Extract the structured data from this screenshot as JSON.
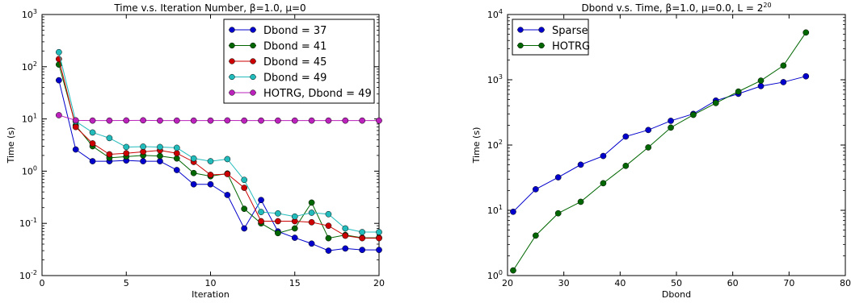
{
  "chart_data": [
    {
      "type": "line",
      "title": "Time v.s. Iteration Number, β=1.0, μ=0",
      "xlabel": "Iteration",
      "ylabel": "Time (s)",
      "xlim": [
        0,
        20
      ],
      "ylim": [
        0.01,
        1000
      ],
      "yscale": "log",
      "xticks": [
        "0",
        "5",
        "10",
        "15",
        "20"
      ],
      "yticks": [
        "10",
        "10",
        "10",
        "10",
        "10",
        "10"
      ],
      "ytick_exponents": [
        "-2",
        "-1",
        "0",
        "1",
        "2",
        "3"
      ],
      "legend_position": "top-right",
      "x": [
        1,
        2,
        3,
        4,
        5,
        6,
        7,
        8,
        9,
        10,
        11,
        12,
        13,
        14,
        15,
        16,
        17,
        18,
        19,
        20
      ],
      "series": [
        {
          "name": "Dbond = 37",
          "color": "#0000cc",
          "values": [
            55,
            2.6,
            1.55,
            1.55,
            1.6,
            1.55,
            1.55,
            1.05,
            0.56,
            0.56,
            0.35,
            0.08,
            0.28,
            0.07,
            0.053,
            0.041,
            0.03,
            0.033,
            0.031,
            0.031
          ]
        },
        {
          "name": "Dbond = 41",
          "color": "#006600",
          "values": [
            110,
            7.5,
            3.0,
            1.8,
            1.9,
            2.0,
            1.95,
            1.75,
            0.92,
            0.8,
            0.9,
            0.19,
            0.1,
            0.065,
            0.08,
            0.25,
            0.052,
            0.06,
            0.053,
            0.053
          ]
        },
        {
          "name": "Dbond = 45",
          "color": "#cc0000",
          "values": [
            140,
            7.0,
            3.4,
            2.1,
            2.2,
            2.35,
            2.5,
            2.2,
            1.5,
            0.85,
            0.88,
            0.48,
            0.11,
            0.11,
            0.11,
            0.105,
            0.09,
            0.058,
            0.052,
            0.052
          ]
        },
        {
          "name": "Dbond = 49",
          "color": "#22bbbb",
          "values": [
            190,
            9.0,
            5.5,
            4.3,
            2.9,
            2.95,
            2.9,
            2.8,
            1.75,
            1.55,
            1.7,
            0.68,
            0.165,
            0.155,
            0.135,
            0.16,
            0.15,
            0.08,
            0.068,
            0.068
          ]
        },
        {
          "name": "HOTRG, Dbond = 49",
          "color": "#bb22bb",
          "values": [
            11.8,
            9.4,
            9.3,
            9.3,
            9.35,
            9.4,
            9.3,
            9.3,
            9.3,
            9.3,
            9.35,
            9.3,
            9.3,
            9.3,
            9.3,
            9.3,
            9.3,
            9.3,
            9.3,
            9.3
          ]
        }
      ]
    },
    {
      "type": "line",
      "title": "Dbond v.s. Time, β=1.0, μ=0.0, L = 2",
      "title_exponent": "20",
      "xlabel": "Dbond",
      "ylabel": "Time (s)",
      "xlim": [
        20,
        80
      ],
      "ylim": [
        1,
        10000
      ],
      "yscale": "log",
      "xticks": [
        "20",
        "30",
        "40",
        "50",
        "60",
        "70",
        "80"
      ],
      "yticks": [
        "10",
        "10",
        "10",
        "10",
        "10"
      ],
      "ytick_exponents": [
        "0",
        "1",
        "2",
        "3",
        "4"
      ],
      "legend_position": "top-left",
      "x": [
        21,
        25,
        29,
        33,
        37,
        41,
        45,
        49,
        53,
        57,
        61,
        65,
        69,
        73
      ],
      "series": [
        {
          "name": "Sparse",
          "color": "#0000cc",
          "values": [
            9.5,
            21,
            32,
            50,
            68,
            135,
            170,
            235,
            300,
            480,
            610,
            800,
            920,
            1130
          ]
        },
        {
          "name": "HOTRG",
          "color": "#006600",
          "values": [
            1.2,
            4.1,
            9.0,
            13.5,
            26,
            48,
            92,
            185,
            290,
            440,
            660,
            970,
            1650,
            5300
          ]
        }
      ]
    }
  ]
}
